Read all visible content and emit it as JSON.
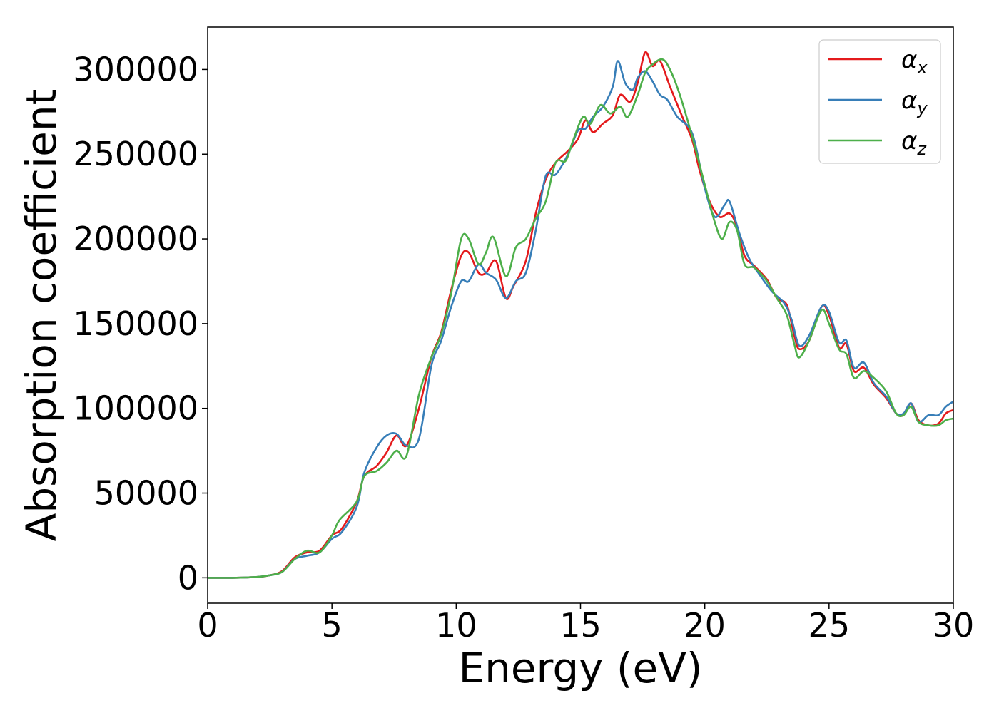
{
  "chart_data": {
    "type": "line",
    "title": "",
    "xlabel": "Energy (eV)",
    "ylabel": "Absorption coefficient",
    "xlim": [
      0,
      30
    ],
    "ylim": [
      -15000,
      325000
    ],
    "xticks": [
      0,
      5,
      10,
      15,
      20,
      25,
      30
    ],
    "yticks": [
      0,
      50000,
      100000,
      150000,
      200000,
      250000,
      300000
    ],
    "grid": false,
    "legend_position": "top-right",
    "series": [
      {
        "name": "α",
        "subscript": "x",
        "color": "#e41a1c",
        "points": [
          [
            0,
            0
          ],
          [
            1,
            0
          ],
          [
            2,
            500
          ],
          [
            2.5,
            1500
          ],
          [
            3,
            4000
          ],
          [
            3.5,
            12000
          ],
          [
            4,
            15000
          ],
          [
            4.5,
            16000
          ],
          [
            5,
            25000
          ],
          [
            5.4,
            29000
          ],
          [
            6,
            45000
          ],
          [
            6.3,
            60000
          ],
          [
            6.8,
            66000
          ],
          [
            7.2,
            74000
          ],
          [
            7.6,
            84000
          ],
          [
            8,
            78000
          ],
          [
            8.5,
            100000
          ],
          [
            9,
            130000
          ],
          [
            9.4,
            145000
          ],
          [
            9.8,
            170000
          ],
          [
            10.2,
            190000
          ],
          [
            10.5,
            192000
          ],
          [
            10.9,
            180000
          ],
          [
            11.2,
            180000
          ],
          [
            11.6,
            187000
          ],
          [
            12,
            165000
          ],
          [
            12.3,
            172000
          ],
          [
            12.8,
            187000
          ],
          [
            13.2,
            215000
          ],
          [
            13.6,
            235000
          ],
          [
            14,
            245000
          ],
          [
            14.5,
            252000
          ],
          [
            14.9,
            259000
          ],
          [
            15.2,
            270000
          ],
          [
            15.5,
            263000
          ],
          [
            15.9,
            268000
          ],
          [
            16.3,
            273000
          ],
          [
            16.6,
            285000
          ],
          [
            17,
            281000
          ],
          [
            17.3,
            292000
          ],
          [
            17.6,
            310000
          ],
          [
            17.9,
            302000
          ],
          [
            18.2,
            305000
          ],
          [
            18.6,
            290000
          ],
          [
            19.1,
            272000
          ],
          [
            19.5,
            258000
          ],
          [
            19.8,
            240000
          ],
          [
            20.2,
            222000
          ],
          [
            20.6,
            213000
          ],
          [
            21,
            215000
          ],
          [
            21.3,
            207000
          ],
          [
            21.6,
            190000
          ],
          [
            22,
            184000
          ],
          [
            22.5,
            176000
          ],
          [
            22.9,
            165000
          ],
          [
            23.3,
            161000
          ],
          [
            23.6,
            143000
          ],
          [
            23.8,
            135000
          ],
          [
            24.2,
            140000
          ],
          [
            24.7,
            160000
          ],
          [
            25,
            155000
          ],
          [
            25.4,
            136000
          ],
          [
            25.7,
            138000
          ],
          [
            26,
            122000
          ],
          [
            26.4,
            124000
          ],
          [
            26.8,
            114000
          ],
          [
            27.3,
            106000
          ],
          [
            27.7,
            97000
          ],
          [
            28,
            96000
          ],
          [
            28.3,
            103000
          ],
          [
            28.6,
            93000
          ],
          [
            29,
            90000
          ],
          [
            29.4,
            91000
          ],
          [
            29.7,
            97000
          ],
          [
            30,
            99000
          ]
        ]
      },
      {
        "name": "α",
        "subscript": "y",
        "color": "#377eb8",
        "points": [
          [
            0,
            0
          ],
          [
            1,
            0
          ],
          [
            2,
            500
          ],
          [
            2.5,
            1500
          ],
          [
            3,
            3500
          ],
          [
            3.5,
            11000
          ],
          [
            4,
            13000
          ],
          [
            4.5,
            15000
          ],
          [
            5,
            23000
          ],
          [
            5.4,
            27000
          ],
          [
            6,
            42000
          ],
          [
            6.3,
            62000
          ],
          [
            6.8,
            77000
          ],
          [
            7.2,
            84000
          ],
          [
            7.6,
            85000
          ],
          [
            8,
            78000
          ],
          [
            8.5,
            82000
          ],
          [
            9,
            125000
          ],
          [
            9.4,
            140000
          ],
          [
            9.8,
            160000
          ],
          [
            10.2,
            175000
          ],
          [
            10.5,
            175000
          ],
          [
            10.9,
            185000
          ],
          [
            11.2,
            180000
          ],
          [
            11.6,
            176000
          ],
          [
            12,
            165000
          ],
          [
            12.4,
            175000
          ],
          [
            12.8,
            180000
          ],
          [
            13.2,
            205000
          ],
          [
            13.6,
            237000
          ],
          [
            14,
            238000
          ],
          [
            14.5,
            250000
          ],
          [
            14.9,
            264000
          ],
          [
            15.2,
            265000
          ],
          [
            15.5,
            272000
          ],
          [
            15.9,
            278000
          ],
          [
            16.3,
            290000
          ],
          [
            16.5,
            305000
          ],
          [
            16.8,
            292000
          ],
          [
            17.1,
            288000
          ],
          [
            17.3,
            295000
          ],
          [
            17.6,
            299000
          ],
          [
            17.9,
            293000
          ],
          [
            18.2,
            285000
          ],
          [
            18.5,
            282000
          ],
          [
            18.9,
            272000
          ],
          [
            19.5,
            262000
          ],
          [
            20,
            230000
          ],
          [
            20.4,
            213000
          ],
          [
            20.8,
            220000
          ],
          [
            21,
            222000
          ],
          [
            21.4,
            203000
          ],
          [
            21.8,
            188000
          ],
          [
            22.2,
            179000
          ],
          [
            22.7,
            169000
          ],
          [
            23.2,
            162000
          ],
          [
            23.5,
            152000
          ],
          [
            23.8,
            137000
          ],
          [
            24.2,
            143000
          ],
          [
            24.7,
            160000
          ],
          [
            25,
            157000
          ],
          [
            25.4,
            139000
          ],
          [
            25.7,
            140000
          ],
          [
            26,
            124000
          ],
          [
            26.4,
            127000
          ],
          [
            26.8,
            115000
          ],
          [
            27.3,
            107000
          ],
          [
            27.7,
            97000
          ],
          [
            28,
            97000
          ],
          [
            28.3,
            103000
          ],
          [
            28.6,
            92000
          ],
          [
            29,
            96000
          ],
          [
            29.4,
            96000
          ],
          [
            29.7,
            101000
          ],
          [
            30,
            104000
          ]
        ]
      },
      {
        "name": "α",
        "subscript": "z",
        "color": "#4daf4a",
        "points": [
          [
            0,
            0
          ],
          [
            1,
            0
          ],
          [
            2,
            500
          ],
          [
            2.5,
            1500
          ],
          [
            3,
            3500
          ],
          [
            3.5,
            11000
          ],
          [
            4,
            16000
          ],
          [
            4.5,
            15000
          ],
          [
            5,
            25000
          ],
          [
            5.3,
            34000
          ],
          [
            6,
            45000
          ],
          [
            6.3,
            60000
          ],
          [
            6.8,
            63000
          ],
          [
            7.2,
            68000
          ],
          [
            7.6,
            75000
          ],
          [
            8,
            72000
          ],
          [
            8.5,
            108000
          ],
          [
            9,
            130000
          ],
          [
            9.4,
            144000
          ],
          [
            9.8,
            168000
          ],
          [
            10.2,
            200000
          ],
          [
            10.5,
            200000
          ],
          [
            10.9,
            185000
          ],
          [
            11.2,
            192000
          ],
          [
            11.5,
            201000
          ],
          [
            12,
            178000
          ],
          [
            12.4,
            195000
          ],
          [
            12.8,
            200000
          ],
          [
            13.2,
            212000
          ],
          [
            13.6,
            222000
          ],
          [
            14,
            245000
          ],
          [
            14.4,
            246000
          ],
          [
            14.7,
            258000
          ],
          [
            15.1,
            272000
          ],
          [
            15.4,
            268000
          ],
          [
            15.8,
            279000
          ],
          [
            16.2,
            274000
          ],
          [
            16.6,
            278000
          ],
          [
            16.9,
            272000
          ],
          [
            17.3,
            285000
          ],
          [
            17.6,
            298000
          ],
          [
            17.9,
            303000
          ],
          [
            18.3,
            306000
          ],
          [
            18.6,
            300000
          ],
          [
            19,
            285000
          ],
          [
            19.5,
            260000
          ],
          [
            20,
            232000
          ],
          [
            20.4,
            210000
          ],
          [
            20.7,
            200000
          ],
          [
            21,
            210000
          ],
          [
            21.3,
            205000
          ],
          [
            21.6,
            185000
          ],
          [
            22,
            183000
          ],
          [
            22.5,
            175000
          ],
          [
            22.9,
            165000
          ],
          [
            23.3,
            155000
          ],
          [
            23.6,
            138000
          ],
          [
            23.8,
            130000
          ],
          [
            24.2,
            140000
          ],
          [
            24.7,
            158000
          ],
          [
            25,
            150000
          ],
          [
            25.4,
            135000
          ],
          [
            25.7,
            132000
          ],
          [
            26,
            118000
          ],
          [
            26.4,
            122000
          ],
          [
            26.8,
            118000
          ],
          [
            27.3,
            110000
          ],
          [
            27.7,
            97000
          ],
          [
            28,
            96000
          ],
          [
            28.3,
            101000
          ],
          [
            28.6,
            92000
          ],
          [
            29,
            90000
          ],
          [
            29.4,
            90000
          ],
          [
            29.7,
            93000
          ],
          [
            30,
            94000
          ]
        ]
      }
    ]
  }
}
